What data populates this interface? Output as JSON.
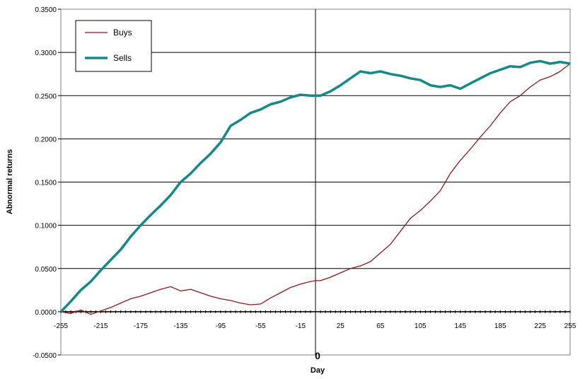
{
  "chart_data": {
    "type": "line",
    "title": "",
    "xlabel": "Day",
    "ylabel": "Abnormal returns",
    "xlim": [
      -255,
      255
    ],
    "ylim": [
      -0.05,
      0.35
    ],
    "x_ticks": [
      -255,
      -215,
      -175,
      -135,
      -95,
      -55,
      -15,
      25,
      65,
      105,
      145,
      185,
      225,
      255
    ],
    "x_tick_labels": [
      "-255",
      "-215",
      "-175",
      "-135",
      "-95",
      "-55",
      "-15",
      "25",
      "65",
      "105",
      "145",
      "185",
      "225",
      "255"
    ],
    "y_ticks": [
      -0.05,
      0,
      0.05,
      0.1,
      0.15,
      0.2,
      0.25,
      0.3,
      0.35
    ],
    "y_tick_labels": [
      "-0.0500",
      "0.0000",
      "0.0500",
      "0.1000",
      "0.1500",
      "0.2000",
      "0.2500",
      "0.3000",
      "0.3500"
    ],
    "zero_label": "0",
    "grid": "horizontal",
    "legend_position": "top-left",
    "series": [
      {
        "name": "Buys",
        "color": "#8b1a1a",
        "x": [
          -255,
          -245,
          -235,
          -225,
          -215,
          -205,
          -195,
          -185,
          -175,
          -165,
          -155,
          -145,
          -135,
          -125,
          -115,
          -105,
          -95,
          -85,
          -75,
          -65,
          -55,
          -45,
          -35,
          -25,
          -15,
          -5,
          0,
          5,
          15,
          25,
          35,
          45,
          55,
          65,
          75,
          85,
          95,
          105,
          115,
          125,
          135,
          145,
          155,
          165,
          175,
          185,
          195,
          205,
          215,
          225,
          235,
          245,
          255
        ],
        "values": [
          0.0,
          -0.002,
          0.002,
          -0.003,
          0.001,
          0.005,
          0.01,
          0.015,
          0.018,
          0.022,
          0.026,
          0.029,
          0.024,
          0.026,
          0.022,
          0.018,
          0.015,
          0.013,
          0.01,
          0.008,
          0.009,
          0.016,
          0.022,
          0.028,
          0.032,
          0.035,
          0.036,
          0.036,
          0.04,
          0.045,
          0.05,
          0.053,
          0.058,
          0.068,
          0.078,
          0.093,
          0.108,
          0.117,
          0.128,
          0.14,
          0.16,
          0.175,
          0.188,
          0.202,
          0.215,
          0.23,
          0.243,
          0.25,
          0.26,
          0.268,
          0.272,
          0.278,
          0.287
        ]
      },
      {
        "name": "Sells",
        "color": "#14898a",
        "x": [
          -255,
          -245,
          -235,
          -225,
          -215,
          -205,
          -195,
          -185,
          -175,
          -165,
          -155,
          -145,
          -135,
          -125,
          -115,
          -105,
          -95,
          -85,
          -75,
          -65,
          -55,
          -45,
          -35,
          -25,
          -15,
          -5,
          0,
          5,
          15,
          25,
          35,
          45,
          55,
          65,
          75,
          85,
          95,
          105,
          115,
          125,
          135,
          145,
          155,
          165,
          175,
          185,
          195,
          205,
          215,
          225,
          235,
          245,
          255
        ],
        "values": [
          0.0,
          0.012,
          0.025,
          0.035,
          0.048,
          0.06,
          0.072,
          0.087,
          0.1,
          0.112,
          0.123,
          0.135,
          0.15,
          0.16,
          0.172,
          0.183,
          0.196,
          0.215,
          0.222,
          0.23,
          0.234,
          0.24,
          0.243,
          0.248,
          0.251,
          0.25,
          0.25,
          0.25,
          0.255,
          0.262,
          0.27,
          0.278,
          0.276,
          0.278,
          0.275,
          0.273,
          0.27,
          0.268,
          0.262,
          0.26,
          0.262,
          0.258,
          0.264,
          0.27,
          0.276,
          0.28,
          0.284,
          0.283,
          0.288,
          0.29,
          0.287,
          0.289,
          0.287
        ]
      }
    ]
  }
}
